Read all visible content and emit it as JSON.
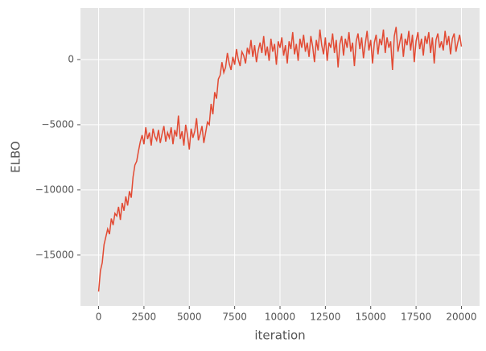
{
  "chart_data": {
    "type": "line",
    "xlabel": "iteration",
    "ylabel": "ELBO",
    "xlim": [
      -1000,
      21000
    ],
    "ylim": [
      -18900,
      3950
    ],
    "xticks": [
      0,
      2500,
      5000,
      7500,
      10000,
      12500,
      15000,
      17500,
      20000
    ],
    "yticks": [
      {
        "value": -15000,
        "label": "−15000"
      },
      {
        "value": -10000,
        "label": "−10000"
      },
      {
        "value": -5000,
        "label": "−5000"
      },
      0
    ],
    "grid": true,
    "x": [
      0,
      100,
      200,
      300,
      400,
      500,
      600,
      700,
      800,
      900,
      1000,
      1100,
      1200,
      1300,
      1400,
      1500,
      1600,
      1700,
      1800,
      1900,
      2000,
      2100,
      2200,
      2300,
      2400,
      2500,
      2600,
      2700,
      2800,
      2900,
      3000,
      3100,
      3200,
      3300,
      3400,
      3500,
      3600,
      3700,
      3800,
      3900,
      4000,
      4100,
      4200,
      4300,
      4400,
      4500,
      4600,
      4700,
      4800,
      4900,
      5000,
      5100,
      5200,
      5300,
      5400,
      5500,
      5600,
      5700,
      5800,
      5900,
      6000,
      6100,
      6200,
      6300,
      6400,
      6500,
      6600,
      6700,
      6800,
      6900,
      7000,
      7100,
      7200,
      7300,
      7400,
      7500,
      7600,
      7700,
      7800,
      7900,
      8000,
      8100,
      8200,
      8300,
      8400,
      8500,
      8600,
      8700,
      8800,
      8900,
      9000,
      9100,
      9200,
      9300,
      9400,
      9500,
      9600,
      9700,
      9800,
      9900,
      10000,
      10100,
      10200,
      10300,
      10400,
      10500,
      10600,
      10700,
      10800,
      10900,
      11000,
      11100,
      11200,
      11300,
      11400,
      11500,
      11600,
      11700,
      11800,
      11900,
      12000,
      12100,
      12200,
      12300,
      12400,
      12500,
      12600,
      12700,
      12800,
      12900,
      13000,
      13100,
      13200,
      13300,
      13400,
      13500,
      13600,
      13700,
      13800,
      13900,
      14000,
      14100,
      14200,
      14300,
      14400,
      14500,
      14600,
      14700,
      14800,
      14900,
      15000,
      15100,
      15200,
      15300,
      15400,
      15500,
      15600,
      15700,
      15800,
      15900,
      16000,
      16100,
      16200,
      16300,
      16400,
      16500,
      16600,
      16700,
      16800,
      16900,
      17000,
      17100,
      17200,
      17300,
      17400,
      17500,
      17600,
      17700,
      17800,
      17900,
      18000,
      18100,
      18200,
      18300,
      18400,
      18500,
      18600,
      18700,
      18800,
      18900,
      19000,
      19100,
      19200,
      19300,
      19400,
      19500,
      19600,
      19700,
      19800,
      19900,
      20000
    ],
    "series": [
      {
        "color": "#e24a33",
        "values": [
          -17800,
          -16200,
          -15600,
          -14200,
          -13600,
          -13000,
          -13400,
          -12200,
          -12700,
          -11800,
          -12000,
          -11300,
          -12300,
          -11000,
          -11600,
          -10500,
          -11200,
          -10100,
          -10600,
          -9000,
          -8100,
          -7800,
          -7000,
          -6300,
          -5800,
          -6500,
          -5200,
          -6100,
          -5600,
          -6600,
          -5300,
          -5900,
          -6200,
          -5400,
          -6400,
          -5700,
          -5100,
          -6300,
          -5600,
          -6000,
          -5200,
          -6500,
          -5400,
          -5900,
          -4300,
          -6100,
          -5500,
          -6600,
          -5000,
          -5800,
          -6900,
          -5300,
          -6000,
          -5500,
          -4500,
          -6200,
          -5700,
          -5100,
          -6400,
          -5600,
          -4800,
          -5000,
          -3400,
          -4200,
          -2500,
          -3000,
          -1500,
          -1200,
          -200,
          -1000,
          -600,
          500,
          -300,
          -800,
          200,
          -400,
          800,
          0,
          -500,
          600,
          300,
          -300,
          900,
          400,
          1500,
          200,
          1100,
          -200,
          700,
          1300,
          500,
          1800,
          300,
          1000,
          -100,
          1600,
          600,
          1200,
          -400,
          1400,
          900,
          1700,
          300,
          1100,
          -300,
          1400,
          800,
          2100,
          400,
          1200,
          -100,
          1600,
          900,
          1900,
          600,
          1300,
          200,
          1800,
          1000,
          -200,
          1500,
          700,
          2300,
          1100,
          400,
          1700,
          -100,
          1300,
          900,
          2000,
          500,
          1500,
          -600,
          1200,
          1800,
          300,
          1600,
          900,
          2100,
          600,
          1300,
          -500,
          1400,
          2000,
          800,
          1700,
          100,
          1200,
          2200,
          700,
          1500,
          -300,
          1300,
          1900,
          400,
          1600,
          1100,
          2300,
          500,
          1700,
          900,
          1400,
          -800,
          1800,
          2500,
          600,
          1300,
          2000,
          200,
          1600,
          1100,
          2200,
          700,
          1900,
          -200,
          1400,
          2100,
          800,
          1600,
          300,
          1800,
          1200,
          2100,
          500,
          1700,
          -300,
          1500,
          2000,
          900,
          1400,
          700,
          2200,
          1100,
          1800,
          400,
          1600,
          2000,
          600,
          1300,
          1900,
          1000
        ]
      }
    ]
  }
}
